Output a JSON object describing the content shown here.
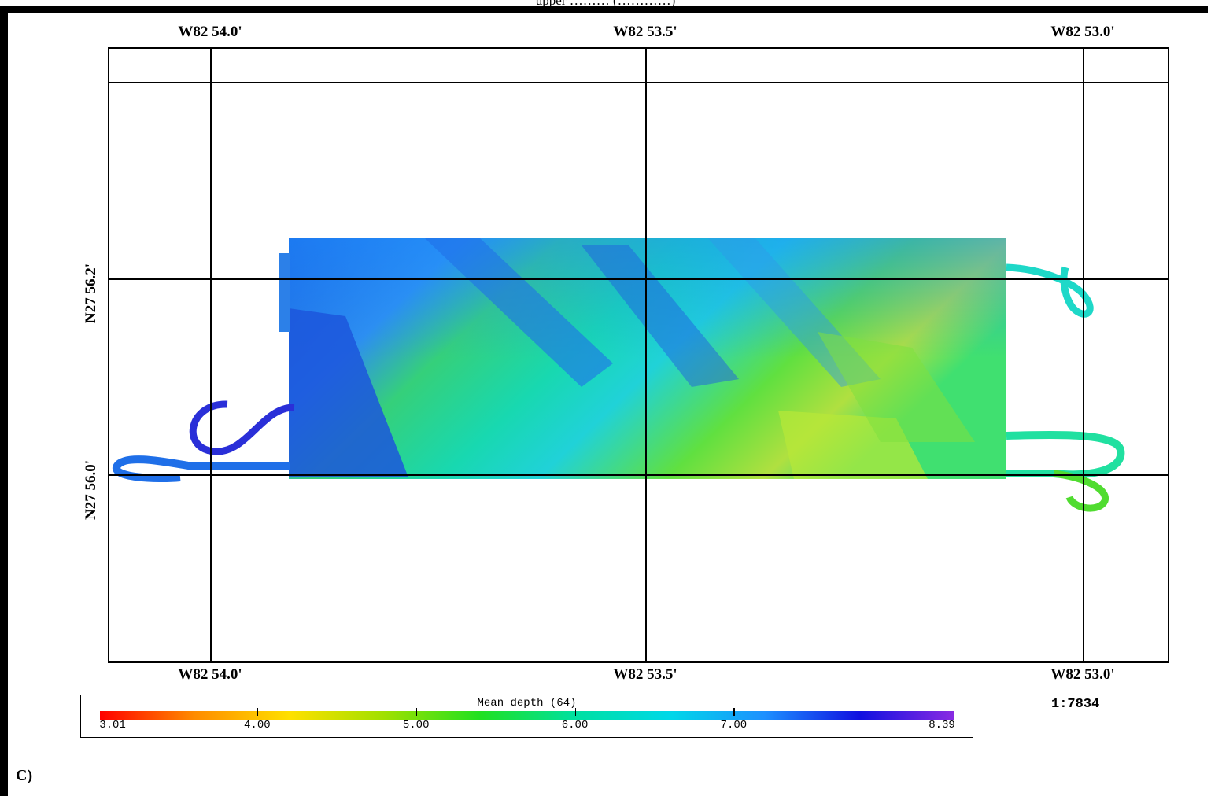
{
  "top_caption": "upper ……… (…………)",
  "map": {
    "lon_labels_top": [
      "W82 54.0'",
      "W82 53.5'",
      "W82 53.0'"
    ],
    "lon_labels_bottom": [
      "W82 54.0'",
      "W82 53.5'",
      "W82 53.0'"
    ],
    "lat_labels": [
      "N27 56.2'",
      "N27 56.0'"
    ],
    "scale": "1:7834",
    "panel_letter": "C)"
  },
  "colorbar": {
    "title": "Mean depth (64)",
    "min_label": "3.01",
    "max_label": "8.39",
    "tick_labels": [
      "4.00",
      "5.00",
      "6.00",
      "7.00"
    ],
    "min": 3.01,
    "max": 8.39,
    "colors": [
      "#ff0000",
      "#ff8c00",
      "#ffe000",
      "#a0e000",
      "#20e020",
      "#00e0a0",
      "#00d8e8",
      "#1e90ff",
      "#1010e0",
      "#8a2be2"
    ]
  }
}
